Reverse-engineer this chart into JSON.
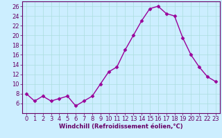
{
  "x": [
    0,
    1,
    2,
    3,
    4,
    5,
    6,
    7,
    8,
    9,
    10,
    11,
    12,
    13,
    14,
    15,
    16,
    17,
    18,
    19,
    20,
    21,
    22,
    23
  ],
  "y": [
    8,
    6.5,
    7.5,
    6.5,
    7,
    7.5,
    5.5,
    6.5,
    7.5,
    10,
    12.5,
    13.5,
    17,
    20,
    23,
    25.5,
    26,
    24.5,
    24,
    19.5,
    16,
    13.5,
    11.5,
    10.5
  ],
  "line_color": "#990099",
  "marker": "D",
  "markersize": 2.5,
  "linewidth": 1.0,
  "background_color": "#cceeff",
  "grid_color": "#aadddd",
  "xlabel": "Windchill (Refroidissement éolien,°C)",
  "xlabel_fontsize": 6.0,
  "tick_fontsize": 6.0,
  "ylim": [
    4,
    27
  ],
  "yticks": [
    6,
    8,
    10,
    12,
    14,
    16,
    18,
    20,
    22,
    24,
    26
  ],
  "xlim": [
    -0.5,
    23.5
  ],
  "xticks": [
    0,
    1,
    2,
    3,
    4,
    5,
    6,
    7,
    8,
    9,
    10,
    11,
    12,
    13,
    14,
    15,
    16,
    17,
    18,
    19,
    20,
    21,
    22,
    23
  ],
  "text_color": "#660066",
  "spine_color": "#660066"
}
